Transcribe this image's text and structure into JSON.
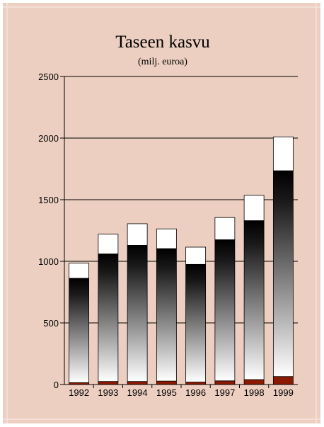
{
  "chart_data": {
    "type": "bar",
    "title": "Taseen kasvu",
    "subtitle": "(milj. euroa)",
    "xlabel": "",
    "ylabel": "",
    "ylim": [
      0,
      2500
    ],
    "yticks": [
      0,
      500,
      1000,
      1500,
      2000,
      2500
    ],
    "grid": true,
    "categories": [
      "1992",
      "1993",
      "1994",
      "1995",
      "1996",
      "1997",
      "1998",
      "1999"
    ],
    "series": [
      {
        "color": "#8b1a00",
        "values": [
          15,
          25,
          25,
          28,
          20,
          30,
          40,
          65
        ]
      },
      {
        "color": "#000000",
        "values": [
          847,
          1035,
          1105,
          1075,
          955,
          1145,
          1290,
          1670
        ]
      },
      {
        "color": "#ffffff",
        "values": [
          123,
          160,
          175,
          160,
          140,
          180,
          205,
          275
        ]
      }
    ],
    "totals": [
      985,
      1220,
      1305,
      1263,
      1115,
      1355,
      1535,
      2010
    ]
  }
}
